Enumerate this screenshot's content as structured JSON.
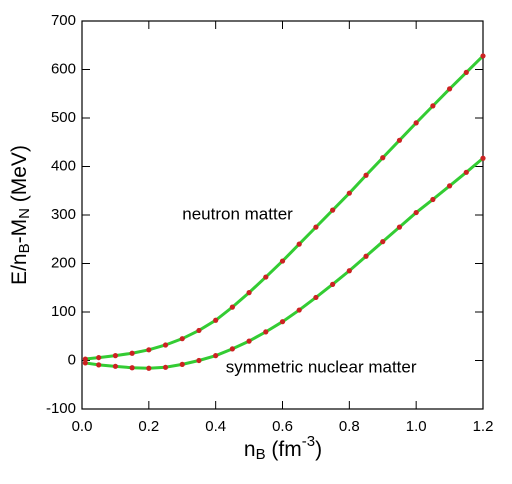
{
  "chart_data": {
    "type": "line",
    "x_label_parts": [
      "n",
      "B",
      " (fm",
      "-3",
      ")"
    ],
    "y_label_parts": [
      "E/n",
      "B",
      "-M",
      "N",
      " (MeV)"
    ],
    "annotations": [
      {
        "text": "neutron matter",
        "x": 0.3,
        "y": 300
      },
      {
        "text": "symmetric nuclear matter",
        "x": 0.43,
        "y": -15
      }
    ],
    "x": [
      0.01,
      0.05,
      0.1,
      0.15,
      0.2,
      0.25,
      0.3,
      0.35,
      0.4,
      0.45,
      0.5,
      0.55,
      0.6,
      0.65,
      0.7,
      0.75,
      0.8,
      0.85,
      0.9,
      0.95,
      1.0,
      1.05,
      1.1,
      1.15,
      1.2
    ],
    "series": [
      {
        "line_color": "#33cc33",
        "marker_color": "#cc2222",
        "values": [
          3,
          6,
          10,
          15,
          22,
          32,
          45,
          62,
          83,
          110,
          140,
          172,
          205,
          240,
          275,
          310,
          345,
          382,
          418,
          454,
          490,
          525,
          560,
          594,
          628
        ]
      },
      {
        "line_color": "#33cc33",
        "marker_color": "#cc2222",
        "values": [
          -5,
          -9,
          -12,
          -15,
          -16,
          -14,
          -8,
          0,
          10,
          24,
          40,
          59,
          80,
          104,
          130,
          157,
          185,
          215,
          245,
          275,
          305,
          332,
          360,
          388,
          417
        ]
      }
    ],
    "xlim": [
      0,
      1.2
    ],
    "xticks": [
      {
        "value": 0,
        "label": "0.0"
      },
      0.2,
      0.4,
      0.6,
      0.8,
      {
        "value": 1,
        "label": "1.0"
      },
      1.2
    ],
    "ylim": [
      -100,
      700
    ],
    "yticks": [
      -100,
      0,
      100,
      200,
      300,
      400,
      500,
      600,
      700
    ]
  }
}
